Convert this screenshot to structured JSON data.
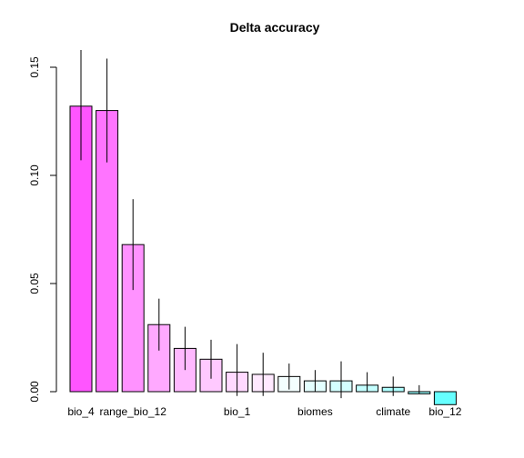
{
  "chart_data": {
    "type": "bar",
    "title": "Delta accuracy",
    "xlabel": "",
    "ylabel": "",
    "ylim": [
      0,
      0.15
    ],
    "y_ticks": [
      0.0,
      0.05,
      0.1,
      0.15
    ],
    "y_tick_labels": [
      "0.00",
      "0.05",
      "0.10",
      "0.15"
    ],
    "grid": false,
    "legend": "none",
    "categories": [
      "bio_4",
      "",
      "range_bio_12",
      "",
      "",
      "",
      "bio_1",
      "",
      "",
      "biomes",
      "",
      "",
      "climate",
      "",
      "bio_12"
    ],
    "values": [
      0.132,
      0.13,
      0.068,
      0.031,
      0.02,
      0.015,
      0.009,
      0.008,
      0.007,
      0.005,
      0.005,
      0.003,
      0.002,
      -0.001,
      -0.006
    ],
    "error_low": [
      0.107,
      0.106,
      0.047,
      0.019,
      0.01,
      0.006,
      -0.002,
      -0.002,
      0.001,
      0.0,
      -0.003,
      0.0,
      -0.002,
      -0.001,
      -0.006
    ],
    "error_high": [
      0.158,
      0.154,
      0.089,
      0.043,
      0.03,
      0.024,
      0.022,
      0.018,
      0.013,
      0.01,
      0.014,
      0.009,
      0.007,
      0.003,
      -0.006
    ],
    "bar_colors": [
      "#ff55ff",
      "#ff74ff",
      "#ff92ff",
      "#ffa9ff",
      "#ffb9ff",
      "#ffc9ff",
      "#ffd9ff",
      "#ffe9ff",
      "#f4ffff",
      "#e4ffff",
      "#d4ffff",
      "#c4ffff",
      "#b0ffff",
      "#99ffff",
      "#66ffff"
    ],
    "bar_stroke": "#000000"
  }
}
